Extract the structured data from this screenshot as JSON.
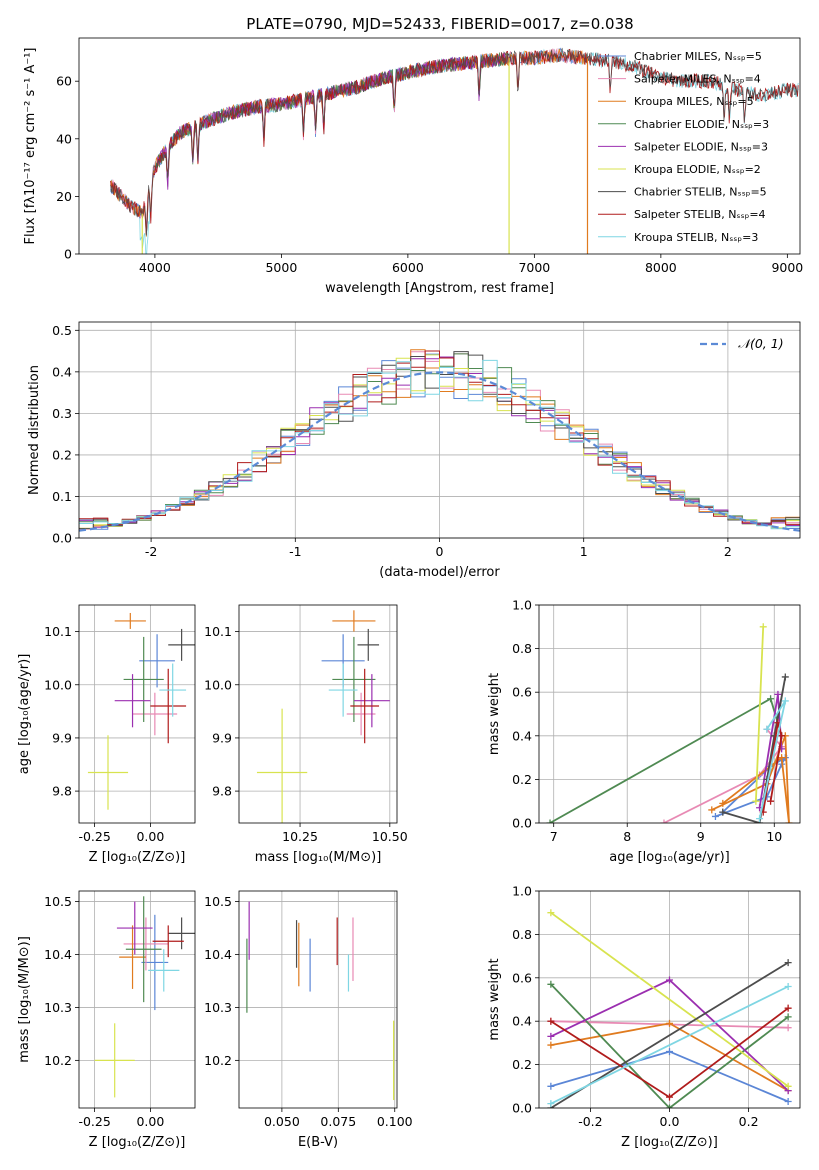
{
  "colors": {
    "Chabrier MILES": "#5b86d6",
    "Salpeter MILES": "#e88ab4",
    "Kroupa MILES": "#e07b1f",
    "Chabrier ELODIE": "#4f8a52",
    "Salpeter ELODIE": "#9b2fb0",
    "Kroupa ELODIE": "#d8e34f",
    "Chabrier STELIB": "#4d4d4d",
    "Salpeter STELIB": "#b01c1c",
    "Kroupa STELIB": "#7fd6e3"
  },
  "chart_data": [
    {
      "id": "spectrum",
      "type": "line",
      "title": "PLATE=0790, MJD=52433, FIBERID=0017, z=0.038",
      "xlabel": "wavelength [Angstrom, rest frame]",
      "ylabel": "Flux [fλ10⁻¹⁷ erg cm⁻² s⁻¹ A⁻¹]",
      "xlim": [
        3400,
        9100
      ],
      "ylim": [
        0,
        75
      ],
      "xticks": [
        4000,
        5000,
        6000,
        7000,
        8000,
        9000
      ],
      "yticks": [
        0,
        20,
        40,
        60
      ],
      "grid": false,
      "legend_position": "top-right",
      "legend": [
        "Chabrier MILES, Nₛₛₚ=5",
        "Salpeter MILES, Nₛₛₚ=4",
        "Kroupa MILES, Nₛₛₚ=5",
        "Chabrier ELODIE, Nₛₛₚ=3",
        "Salpeter ELODIE, Nₛₛₚ=3",
        "Kroupa ELODIE, Nₛₛₚ=2",
        "Chabrier STELIB, Nₛₛₚ=5",
        "Salpeter STELIB, Nₛₛₚ=4",
        "Kroupa STELIB, Nₛₛₚ=3"
      ],
      "continuum": [
        [
          3650,
          24
        ],
        [
          3800,
          17
        ],
        [
          3900,
          14
        ],
        [
          4000,
          30
        ],
        [
          4100,
          37
        ],
        [
          4200,
          42
        ],
        [
          4400,
          46
        ],
        [
          4600,
          49
        ],
        [
          4800,
          51
        ],
        [
          5000,
          52
        ],
        [
          5200,
          54
        ],
        [
          5400,
          56
        ],
        [
          5600,
          58
        ],
        [
          5800,
          61
        ],
        [
          6000,
          63
        ],
        [
          6200,
          65
        ],
        [
          6400,
          66
        ],
        [
          6600,
          67
        ],
        [
          6800,
          68
        ],
        [
          7000,
          68
        ],
        [
          7200,
          69
        ],
        [
          7400,
          68
        ],
        [
          7600,
          67
        ],
        [
          7800,
          65
        ],
        [
          8000,
          61
        ],
        [
          8200,
          60
        ],
        [
          8400,
          60
        ],
        [
          8600,
          57
        ],
        [
          8800,
          55
        ],
        [
          9000,
          57
        ],
        [
          9090,
          57
        ]
      ],
      "drops": [
        {
          "series": "Kroupa ELODIE",
          "x": 3900
        },
        {
          "series": "Kroupa ELODIE",
          "x": 6800
        },
        {
          "series": "Kroupa MILES",
          "x": 7420
        }
      ]
    },
    {
      "id": "residuals",
      "type": "line",
      "xlabel": "(data-model)/error",
      "ylabel": "Normed distribution",
      "xlim": [
        -2.5,
        2.5
      ],
      "ylim": [
        0,
        0.52
      ],
      "xticks": [
        -2,
        -1,
        0,
        1,
        2
      ],
      "yticks": [
        0.0,
        0.1,
        0.2,
        0.3,
        0.4,
        0.5
      ],
      "grid": true,
      "legend": [
        "𝒩(0, 1)"
      ],
      "legend_position": "top-right",
      "reference_curve": {
        "name": "𝒩(0, 1)",
        "mean": 0,
        "sigma": 1,
        "style": "dashed"
      },
      "bin_width": 0.1
    },
    {
      "id": "age_vs_Z",
      "type": "scatter",
      "xlabel": "Z [log₁₀(Z/Z⊙)]",
      "ylabel": "age  [log₁₀(age/yr)]",
      "xlim": [
        -0.32,
        0.2
      ],
      "ylim": [
        9.74,
        10.15
      ],
      "xticks": [
        -0.25,
        0.0
      ],
      "yticks": [
        9.8,
        9.9,
        10.0,
        10.1
      ],
      "grid": true,
      "points": [
        {
          "series": "Chabrier MILES",
          "x": 0.03,
          "y": 10.045,
          "xerr": 0.08,
          "yerr": 0.05
        },
        {
          "series": "Salpeter MILES",
          "x": 0.02,
          "y": 9.945,
          "xerr": 0.1,
          "yerr": 0.04
        },
        {
          "series": "Kroupa MILES",
          "x": -0.09,
          "y": 10.12,
          "xerr": 0.07,
          "yerr": 0.015
        },
        {
          "series": "Chabrier ELODIE",
          "x": -0.03,
          "y": 10.01,
          "xerr": 0.09,
          "yerr": 0.08
        },
        {
          "series": "Salpeter ELODIE",
          "x": -0.08,
          "y": 9.97,
          "xerr": 0.08,
          "yerr": 0.05
        },
        {
          "series": "Kroupa ELODIE",
          "x": -0.19,
          "y": 9.835,
          "xerr": 0.09,
          "yerr": 0.07
        },
        {
          "series": "Chabrier STELIB",
          "x": 0.14,
          "y": 10.075,
          "xerr": 0.06,
          "yerr": 0.03
        },
        {
          "series": "Salpeter STELIB",
          "x": 0.08,
          "y": 9.96,
          "xerr": 0.08,
          "yerr": 0.07
        },
        {
          "series": "Kroupa STELIB",
          "x": 0.1,
          "y": 9.99,
          "xerr": 0.06,
          "yerr": 0.05
        }
      ]
    },
    {
      "id": "age_vs_mass",
      "type": "scatter",
      "xlabel": "mass [log₁₀(M/M⊙)]",
      "xlim": [
        10.08,
        10.52
      ],
      "ylim": [
        9.74,
        10.15
      ],
      "xticks": [
        10.25,
        10.5
      ],
      "yticks": [
        9.8,
        9.9,
        10.0,
        10.1
      ],
      "grid": true,
      "points": [
        {
          "series": "Chabrier MILES",
          "x": 10.37,
          "y": 10.045,
          "xerr": 0.06,
          "yerr": 0.05
        },
        {
          "series": "Salpeter MILES",
          "x": 10.42,
          "y": 9.945,
          "xerr": 0.04,
          "yerr": 0.04
        },
        {
          "series": "Kroupa MILES",
          "x": 10.4,
          "y": 10.12,
          "xerr": 0.06,
          "yerr": 0.02
        },
        {
          "series": "Chabrier ELODIE",
          "x": 10.4,
          "y": 10.01,
          "xerr": 0.06,
          "yerr": 0.08
        },
        {
          "series": "Salpeter ELODIE",
          "x": 10.45,
          "y": 9.97,
          "xerr": 0.05,
          "yerr": 0.05
        },
        {
          "series": "Kroupa ELODIE",
          "x": 10.2,
          "y": 9.835,
          "xerr": 0.07,
          "yerr": 0.12
        },
        {
          "series": "Chabrier STELIB",
          "x": 10.44,
          "y": 10.075,
          "xerr": 0.03,
          "yerr": 0.03
        },
        {
          "series": "Salpeter STELIB",
          "x": 10.43,
          "y": 9.96,
          "xerr": 0.04,
          "yerr": 0.07
        },
        {
          "series": "Kroupa STELIB",
          "x": 10.37,
          "y": 9.99,
          "xerr": 0.04,
          "yerr": 0.05
        }
      ]
    },
    {
      "id": "massweight_vs_age",
      "type": "line",
      "xlabel": "age  [log₁₀(age/yr)]",
      "ylabel": "mass weight",
      "xlim": [
        6.8,
        10.35
      ],
      "ylim": [
        0,
        1.0
      ],
      "xticks": [
        7,
        8,
        9,
        10
      ],
      "yticks": [
        0.0,
        0.2,
        0.4,
        0.6,
        0.8,
        1.0
      ],
      "grid": true,
      "series": [
        {
          "name": "Chabrier MILES",
          "points": [
            [
              9.2,
              0.03
            ],
            [
              9.9,
              0.12
            ],
            [
              10.1,
              0.27
            ],
            [
              10.15,
              0.3
            ],
            [
              9.95,
              0.26
            ],
            [
              9.3,
              0.05
            ]
          ]
        },
        {
          "name": "Salpeter MILES",
          "points": [
            [
              8.5,
              0.0
            ],
            [
              9.8,
              0.22
            ],
            [
              10.1,
              0.35
            ],
            [
              9.9,
              0.43
            ]
          ]
        },
        {
          "name": "Kroupa MILES",
          "points": [
            [
              9.15,
              0.06
            ],
            [
              9.9,
              0.18
            ],
            [
              10.15,
              0.4
            ],
            [
              10.2,
              0.0
            ],
            [
              10.1,
              0.3
            ],
            [
              9.3,
              0.09
            ]
          ]
        },
        {
          "name": "Chabrier ELODIE",
          "points": [
            [
              6.95,
              0.0
            ],
            [
              9.95,
              0.57
            ],
            [
              10.1,
              0.4
            ]
          ]
        },
        {
          "name": "Salpeter ELODIE",
          "points": [
            [
              9.8,
              0.07
            ],
            [
              10.05,
              0.59
            ],
            [
              10.1,
              0.34
            ]
          ]
        },
        {
          "name": "Kroupa ELODIE",
          "points": [
            [
              9.75,
              0.1
            ],
            [
              9.85,
              0.9
            ]
          ]
        },
        {
          "name": "Chabrier STELIB",
          "points": [
            [
              9.3,
              0.05
            ],
            [
              9.8,
              0.0
            ],
            [
              10.0,
              0.4
            ],
            [
              10.15,
              0.67
            ],
            [
              9.9,
              0.2
            ]
          ]
        },
        {
          "name": "Salpeter STELIB",
          "points": [
            [
              9.85,
              0.05
            ],
            [
              10.05,
              0.46
            ],
            [
              10.1,
              0.4
            ],
            [
              9.95,
              0.1
            ]
          ]
        },
        {
          "name": "Kroupa STELIB",
          "points": [
            [
              9.8,
              0.02
            ],
            [
              10.15,
              0.56
            ],
            [
              9.9,
              0.43
            ]
          ]
        }
      ]
    },
    {
      "id": "mass_vs_Z",
      "type": "scatter",
      "xlabel": "Z [log₁₀(Z/Z⊙)]",
      "ylabel": "mass [log₁₀(M/M⊙)]",
      "xlim": [
        -0.32,
        0.2
      ],
      "ylim": [
        10.11,
        10.52
      ],
      "xticks": [
        -0.25,
        0.0
      ],
      "yticks": [
        10.2,
        10.3,
        10.4,
        10.5
      ],
      "grid": true,
      "points": [
        {
          "series": "Chabrier MILES",
          "x": 0.02,
          "y": 10.385,
          "xerr": 0.06,
          "yerr": 0.09
        },
        {
          "series": "Salpeter MILES",
          "x": -0.02,
          "y": 10.42,
          "xerr": 0.1,
          "yerr": 0.05
        },
        {
          "series": "Kroupa MILES",
          "x": -0.08,
          "y": 10.395,
          "xerr": 0.06,
          "yerr": 0.06
        },
        {
          "series": "Chabrier ELODIE",
          "x": -0.03,
          "y": 10.41,
          "xerr": 0.08,
          "yerr": 0.1
        },
        {
          "series": "Salpeter ELODIE",
          "x": -0.07,
          "y": 10.45,
          "xerr": 0.08,
          "yerr": 0.05
        },
        {
          "series": "Kroupa ELODIE",
          "x": -0.16,
          "y": 10.2,
          "xerr": 0.09,
          "yerr": 0.07
        },
        {
          "series": "Chabrier STELIB",
          "x": 0.14,
          "y": 10.44,
          "xerr": 0.06,
          "yerr": 0.03
        },
        {
          "series": "Salpeter STELIB",
          "x": 0.08,
          "y": 10.425,
          "xerr": 0.07,
          "yerr": 0.03
        },
        {
          "series": "Kroupa STELIB",
          "x": 0.06,
          "y": 10.37,
          "xerr": 0.07,
          "yerr": 0.04
        }
      ]
    },
    {
      "id": "mass_vs_EBV",
      "type": "scatter",
      "xlabel": "E(B-V)",
      "xlim": [
        0.031,
        0.101
      ],
      "ylim": [
        10.11,
        10.52
      ],
      "xticks": [
        0.05,
        0.075,
        0.1
      ],
      "xticklabels": [
        "0.050",
        "0.075",
        "0.100"
      ],
      "yticks": [
        10.2,
        10.3,
        10.4,
        10.5
      ],
      "grid": true,
      "points": [
        {
          "series": "Chabrier MILES",
          "x": 0.0625,
          "y": 10.38,
          "yerr": 0.05
        },
        {
          "series": "Salpeter MILES",
          "x": 0.0815,
          "y": 10.41,
          "yerr": 0.06
        },
        {
          "series": "Kroupa MILES",
          "x": 0.0575,
          "y": 10.4,
          "yerr": 0.06
        },
        {
          "series": "Chabrier ELODIE",
          "x": 0.0345,
          "y": 10.36,
          "yerr": 0.07
        },
        {
          "series": "Salpeter ELODIE",
          "x": 0.0355,
          "y": 10.445,
          "yerr": 0.055
        },
        {
          "series": "Kroupa ELODIE",
          "x": 0.0995,
          "y": 10.2,
          "yerr": 0.075
        },
        {
          "series": "Chabrier STELIB",
          "x": 0.0565,
          "y": 10.42,
          "yerr": 0.045
        },
        {
          "series": "Salpeter STELIB",
          "x": 0.0745,
          "y": 10.425,
          "yerr": 0.045
        },
        {
          "series": "Kroupa STELIB",
          "x": 0.0795,
          "y": 10.365,
          "yerr": 0.035
        }
      ]
    },
    {
      "id": "massweight_vs_Z",
      "type": "line",
      "xlabel": "Z [log₁₀(Z/Z⊙)]",
      "ylabel": "mass weight",
      "xlim": [
        -0.33,
        0.33
      ],
      "ylim": [
        0,
        1.0
      ],
      "xticks": [
        -0.2,
        0.0,
        0.2
      ],
      "yticks": [
        0.0,
        0.2,
        0.4,
        0.6,
        0.8,
        1.0
      ],
      "grid": true,
      "series": [
        {
          "name": "Chabrier MILES",
          "points": [
            [
              -0.3,
              0.1
            ],
            [
              0.0,
              0.26
            ],
            [
              0.3,
              0.03
            ]
          ]
        },
        {
          "name": "Salpeter MILES",
          "points": [
            [
              -0.3,
              0.4
            ],
            [
              0.3,
              0.37
            ]
          ]
        },
        {
          "name": "Kroupa MILES",
          "points": [
            [
              -0.3,
              0.29
            ],
            [
              0.0,
              0.39
            ],
            [
              0.3,
              0.08
            ]
          ]
        },
        {
          "name": "Chabrier ELODIE",
          "points": [
            [
              -0.3,
              0.57
            ],
            [
              0.0,
              0.0
            ],
            [
              0.3,
              0.42
            ]
          ]
        },
        {
          "name": "Salpeter ELODIE",
          "points": [
            [
              -0.3,
              0.33
            ],
            [
              0.0,
              0.59
            ],
            [
              0.3,
              0.08
            ]
          ]
        },
        {
          "name": "Kroupa ELODIE",
          "points": [
            [
              -0.3,
              0.9
            ],
            [
              0.3,
              0.1
            ]
          ]
        },
        {
          "name": "Chabrier STELIB",
          "points": [
            [
              -0.3,
              0.0
            ],
            [
              0.3,
              0.67
            ]
          ]
        },
        {
          "name": "Salpeter STELIB",
          "points": [
            [
              -0.3,
              0.4
            ],
            [
              0.0,
              0.05
            ],
            [
              0.3,
              0.46
            ]
          ]
        },
        {
          "name": "Kroupa STELIB",
          "points": [
            [
              -0.3,
              0.02
            ],
            [
              0.3,
              0.56
            ]
          ]
        }
      ]
    }
  ]
}
